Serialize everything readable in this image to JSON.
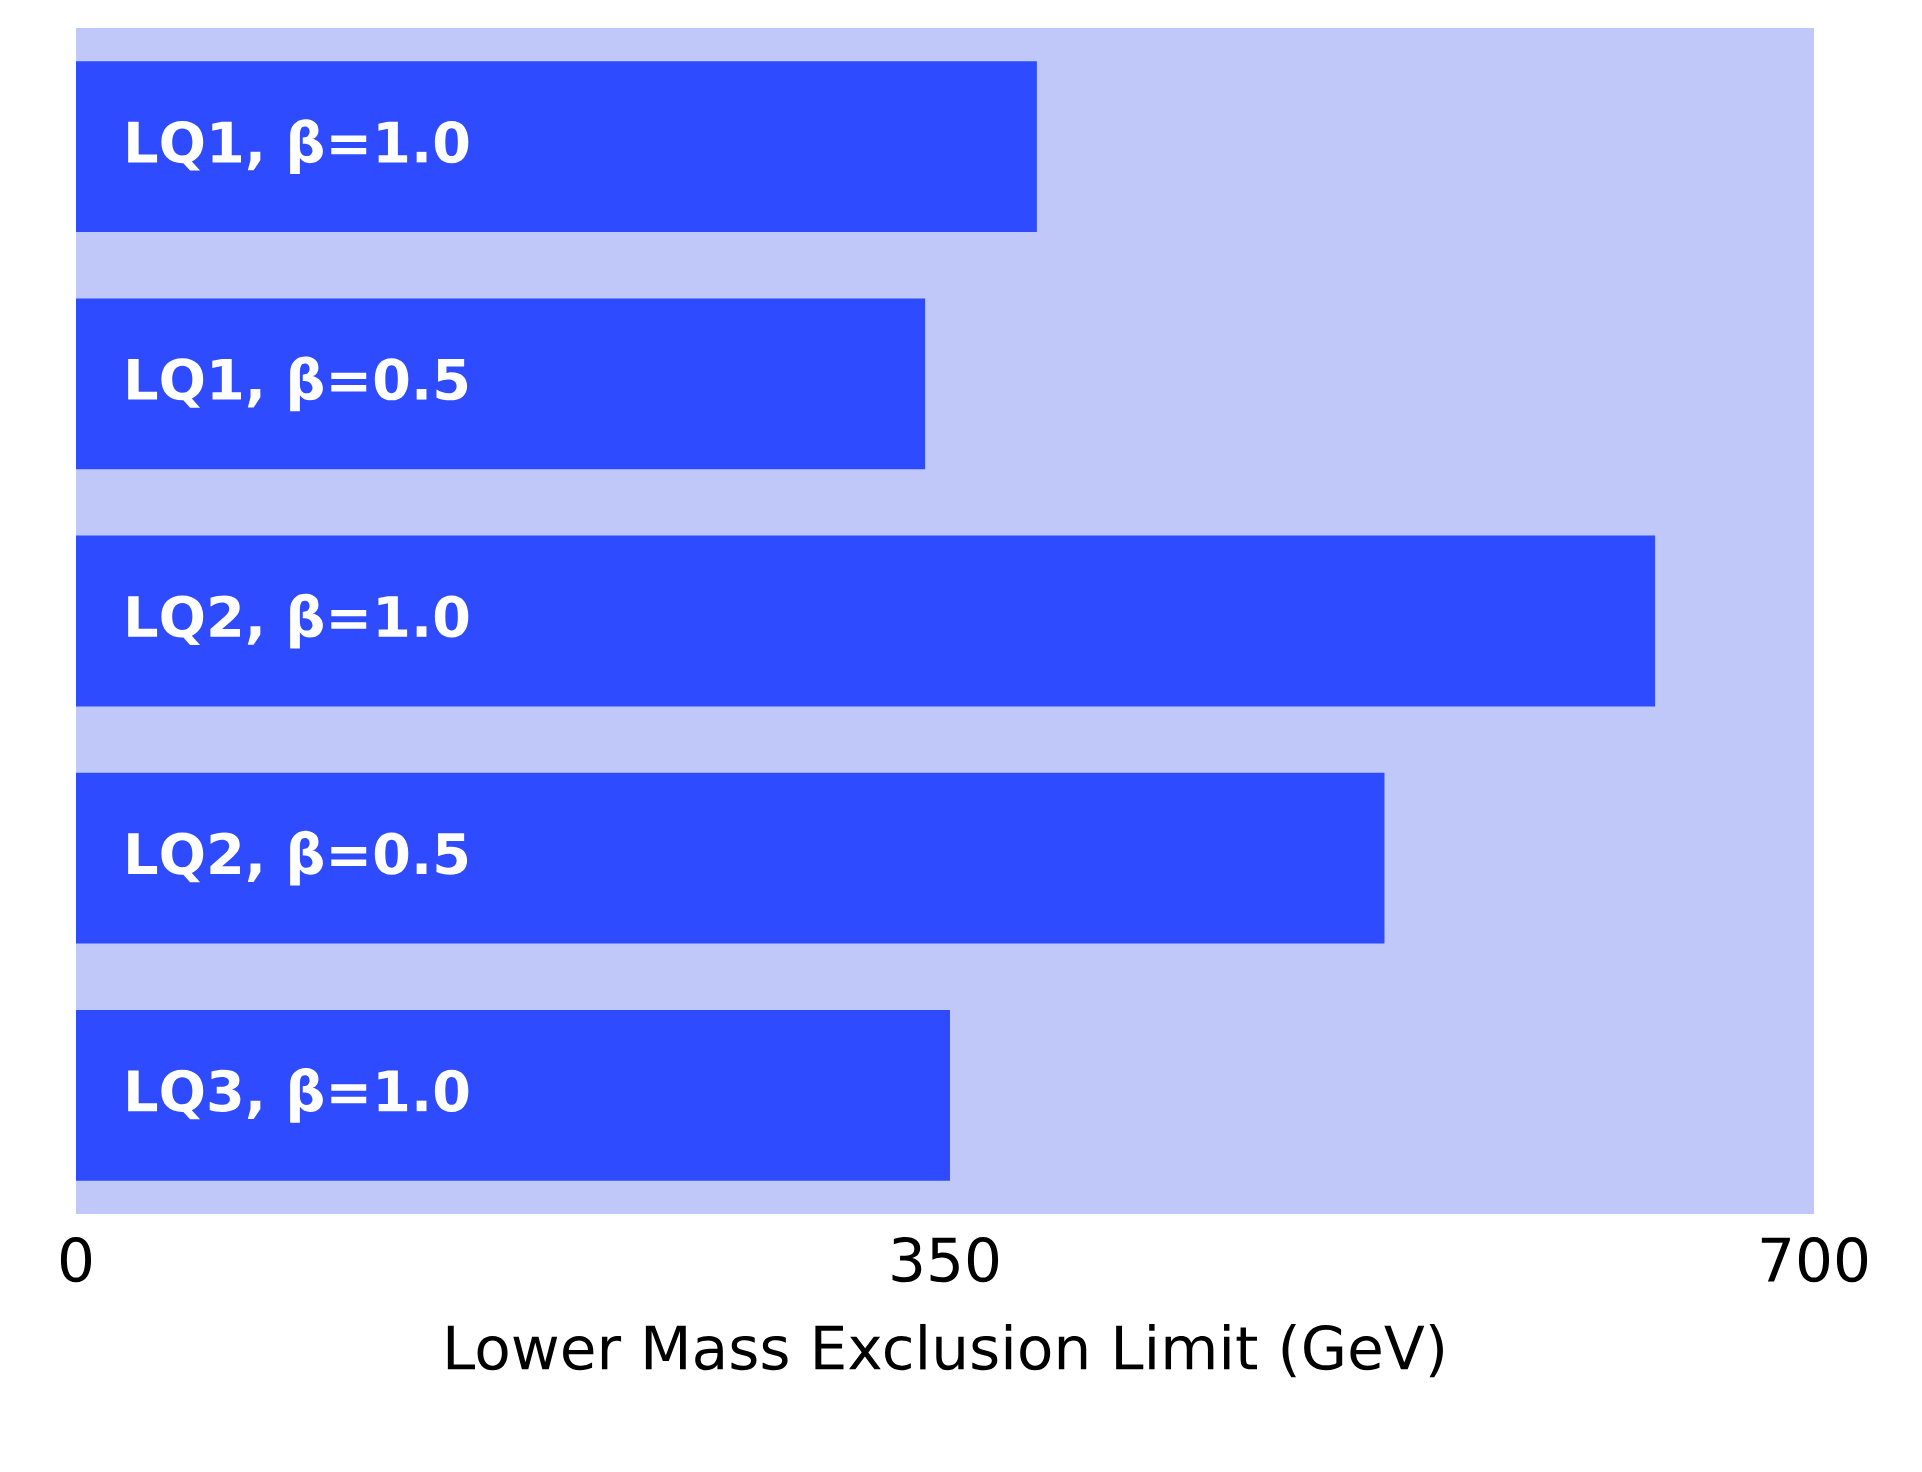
{
  "chart_data": {
    "type": "bar",
    "orientation": "horizontal",
    "xlabel": "Lower Mass Exclusion Limit  (GeV)",
    "categories": [
      "LQ1, β=1.0",
      "LQ1, β=0.5",
      "LQ2, β=1.0",
      "LQ2, β=0.5",
      "LQ3, β=1.0"
    ],
    "values": [
      387,
      342,
      636,
      527,
      352
    ],
    "color": "#2f4bff",
    "xlim": [
      0,
      700
    ],
    "xticks": [
      0,
      350,
      700
    ],
    "grid": false
  }
}
